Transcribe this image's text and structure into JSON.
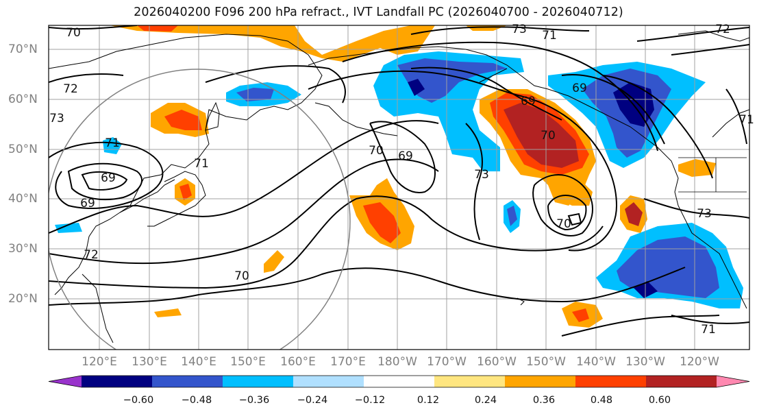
{
  "title": "2026040200 F096 200 hPa refract., IVT Landfall PC (2026040700 - 2026040712)",
  "lon_labels": [
    "120°E",
    "130°E",
    "140°E",
    "150°E",
    "160°E",
    "170°E",
    "180°W",
    "170°W",
    "160°W",
    "150°W",
    "140°W",
    "130°W",
    "120°W"
  ],
  "lat_labels": [
    "70°N",
    "60°N",
    "50°N",
    "40°N",
    "30°N",
    "20°N"
  ],
  "colorbar": {
    "colors": [
      "#9933cc",
      "#000080",
      "#3355cc",
      "#00bfff",
      "#b0e0ff",
      "#ffffff",
      "#ffe680",
      "#ffa500",
      "#ff4000",
      "#b22222",
      "#ff88b0"
    ],
    "tick_labels": [
      "−0.60",
      "−0.48",
      "−0.36",
      "−0.24",
      "−0.12",
      "0.12",
      "0.24",
      "0.36",
      "0.48",
      "0.60"
    ]
  },
  "contour_labels": [
    "70",
    "73",
    "72",
    "71",
    "72",
    "73",
    "69",
    "69",
    "71",
    "70",
    "69",
    "73",
    "70",
    "71",
    "73",
    "72",
    "70",
    "71",
    "71",
    "69",
    "70",
    "69"
  ],
  "accent": {
    "negative": "#3355cc",
    "positive": "#b22222"
  }
}
